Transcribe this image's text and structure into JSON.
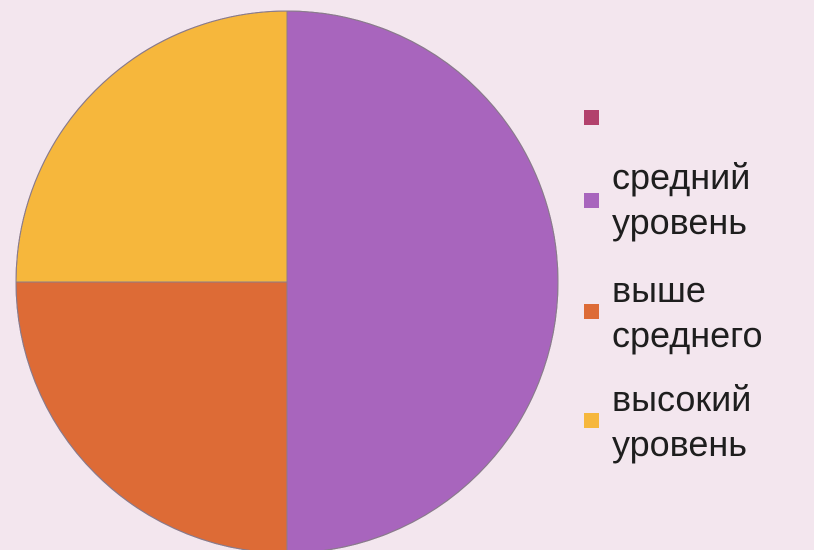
{
  "chart_data": {
    "type": "pie",
    "title": "",
    "start_angle_deg": 0,
    "direction": "clockwise",
    "slices": [
      {
        "label": "",
        "value": 0,
        "color": "#b2416c"
      },
      {
        "label": "средний\nуровень",
        "value": 50,
        "color": "#a865bd"
      },
      {
        "label": "выше\nсреднего",
        "value": 25,
        "color": "#dd6b36"
      },
      {
        "label": "высокий\nуровень",
        "value": 25,
        "color": "#f6b73c"
      }
    ],
    "slice_border_color": "#8a7b8c",
    "legend_position": "right"
  }
}
